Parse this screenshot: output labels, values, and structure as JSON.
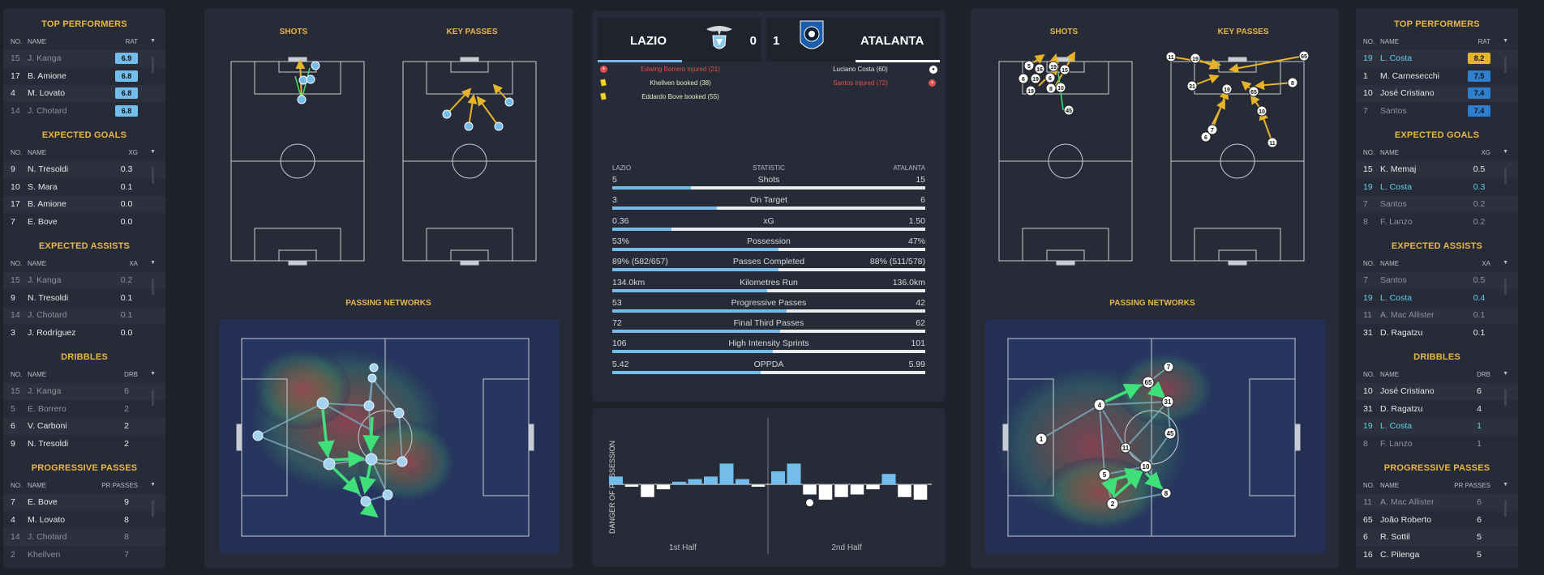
{
  "left_sidebar": {
    "sections": [
      {
        "title": "TOP PERFORMERS",
        "col_no": "NO.",
        "col_name": "NAME",
        "col_val": "RAT",
        "rows": [
          {
            "no": "15",
            "name": "J. Kanga",
            "val": "6.9",
            "style": "dim",
            "badge": "#74bce9"
          },
          {
            "no": "17",
            "name": "B. Amione",
            "val": "6.8",
            "style": "white",
            "badge": "#74bce9"
          },
          {
            "no": "4",
            "name": "M. Lovato",
            "val": "6.8",
            "style": "white",
            "badge": "#74bce9"
          },
          {
            "no": "14",
            "name": "J. Chotard",
            "val": "6.8",
            "style": "dim",
            "badge": "#74bce9"
          }
        ]
      },
      {
        "title": "EXPECTED GOALS",
        "col_no": "NO.",
        "col_name": "NAME",
        "col_val": "XG",
        "rows": [
          {
            "no": "9",
            "name": "N. Tresoldi",
            "val": "0.3",
            "style": "white"
          },
          {
            "no": "10",
            "name": "S. Mara",
            "val": "0.1",
            "style": "white"
          },
          {
            "no": "17",
            "name": "B. Amione",
            "val": "0.0",
            "style": "white"
          },
          {
            "no": "7",
            "name": "E. Bove",
            "val": "0.0",
            "style": "white"
          }
        ]
      },
      {
        "title": "EXPECTED ASSISTS",
        "col_no": "NO.",
        "col_name": "NAME",
        "col_val": "XA",
        "rows": [
          {
            "no": "15",
            "name": "J. Kanga",
            "val": "0.2",
            "style": "dim"
          },
          {
            "no": "9",
            "name": "N. Tresoldi",
            "val": "0.1",
            "style": "white"
          },
          {
            "no": "14",
            "name": "J. Chotard",
            "val": "0.1",
            "style": "dim"
          },
          {
            "no": "3",
            "name": "J. Rodríguez",
            "val": "0.0",
            "style": "white"
          }
        ]
      },
      {
        "title": "DRIBBLES",
        "col_no": "NO.",
        "col_name": "NAME",
        "col_val": "DRB",
        "rows": [
          {
            "no": "15",
            "name": "J. Kanga",
            "val": "6",
            "style": "dim"
          },
          {
            "no": "5",
            "name": "E. Borrero",
            "val": "2",
            "style": "dim"
          },
          {
            "no": "6",
            "name": "V. Carboni",
            "val": "2",
            "style": "white"
          },
          {
            "no": "9",
            "name": "N. Tresoldi",
            "val": "2",
            "style": "white"
          }
        ]
      },
      {
        "title": "PROGRESSIVE PASSES",
        "col_no": "NO.",
        "col_name": "NAME",
        "col_val": "PR PASSES",
        "rows": [
          {
            "no": "7",
            "name": "E. Bove",
            "val": "9",
            "style": "white"
          },
          {
            "no": "4",
            "name": "M. Lovato",
            "val": "8",
            "style": "white"
          },
          {
            "no": "14",
            "name": "J. Chotard",
            "val": "8",
            "style": "dim"
          },
          {
            "no": "2",
            "name": "Khellven",
            "val": "7",
            "style": "dim"
          }
        ]
      }
    ]
  },
  "right_sidebar": {
    "sections": [
      {
        "title": "TOP PERFORMERS",
        "col_no": "NO.",
        "col_name": "NAME",
        "col_val": "RAT",
        "rows": [
          {
            "no": "19",
            "name": "L. Costa",
            "val": "8.2",
            "style": "cyan",
            "badge": "#e6b429"
          },
          {
            "no": "1",
            "name": "M. Carnesecchi",
            "val": "7.5",
            "style": "white",
            "badge": "#2e7fd0"
          },
          {
            "no": "10",
            "name": "José Cristiano",
            "val": "7.4",
            "style": "white",
            "badge": "#2e7fd0"
          },
          {
            "no": "7",
            "name": "Santos",
            "val": "7.4",
            "style": "dim",
            "badge": "#2e7fd0"
          }
        ]
      },
      {
        "title": "EXPECTED GOALS",
        "col_no": "NO.",
        "col_name": "NAME",
        "col_val": "XG",
        "rows": [
          {
            "no": "15",
            "name": "K. Memaj",
            "val": "0.5",
            "style": "white"
          },
          {
            "no": "19",
            "name": "L. Costa",
            "val": "0.3",
            "style": "cyan"
          },
          {
            "no": "7",
            "name": "Santos",
            "val": "0.2",
            "style": "dim"
          },
          {
            "no": "8",
            "name": "F. Lanzo",
            "val": "0.2",
            "style": "dim"
          }
        ]
      },
      {
        "title": "EXPECTED ASSISTS",
        "col_no": "NO.",
        "col_name": "NAME",
        "col_val": "XA",
        "rows": [
          {
            "no": "7",
            "name": "Santos",
            "val": "0.5",
            "style": "dim"
          },
          {
            "no": "19",
            "name": "L. Costa",
            "val": "0.4",
            "style": "cyan"
          },
          {
            "no": "11",
            "name": "A. Mac Allister",
            "val": "0.1",
            "style": "dim"
          },
          {
            "no": "31",
            "name": "D. Ragatzu",
            "val": "0.1",
            "style": "white"
          }
        ]
      },
      {
        "title": "DRIBBLES",
        "col_no": "NO.",
        "col_name": "NAME",
        "col_val": "DRB",
        "rows": [
          {
            "no": "10",
            "name": "José Cristiano",
            "val": "6",
            "style": "white"
          },
          {
            "no": "31",
            "name": "D. Ragatzu",
            "val": "4",
            "style": "white"
          },
          {
            "no": "19",
            "name": "L. Costa",
            "val": "1",
            "style": "cyan"
          },
          {
            "no": "8",
            "name": "F. Lanzo",
            "val": "1",
            "style": "dim"
          }
        ]
      },
      {
        "title": "PROGRESSIVE PASSES",
        "col_no": "NO.",
        "col_name": "NAME",
        "col_val": "PR PASSES",
        "rows": [
          {
            "no": "11",
            "name": "A. Mac Allister",
            "val": "6",
            "style": "dim"
          },
          {
            "no": "65",
            "name": "João Roberto",
            "val": "6",
            "style": "white"
          },
          {
            "no": "6",
            "name": "R. Sottil",
            "val": "5",
            "style": "white"
          },
          {
            "no": "16",
            "name": "C. Pilenga",
            "val": "5",
            "style": "white"
          }
        ]
      }
    ]
  },
  "pitch_labels": {
    "shots": "SHOTS",
    "key_passes": "KEY PASSES",
    "passing_networks": "PASSING NETWORKS"
  },
  "match": {
    "home_team": "LAZIO",
    "away_team": "ATALANTA",
    "home_score": "0",
    "away_score": "1",
    "home_events": [
      {
        "text": "Edwing Borrero injured (21)",
        "type": "injury"
      },
      {
        "text": "Khellven booked (38)",
        "type": "booking"
      },
      {
        "text": "Eddardo Bove booked (55)",
        "type": "booking"
      }
    ],
    "away_events": [
      {
        "text": "Luciano Costa (60)",
        "type": "goal"
      },
      {
        "text": "Santos injured (72)",
        "type": "injury"
      }
    ]
  },
  "stats": {
    "header": {
      "home": "LAZIO",
      "mid": "STATISTIC",
      "away": "ATALANTA"
    },
    "rows": [
      {
        "label": "Shots",
        "home": "5",
        "away": "15",
        "home_share": 0.25
      },
      {
        "label": "On Target",
        "home": "3",
        "away": "6",
        "home_share": 0.333
      },
      {
        "label": "xG",
        "home": "0.36",
        "away": "1.50",
        "home_share": 0.19
      },
      {
        "label": "Possession",
        "home": "53%",
        "away": "47%",
        "home_share": 0.53
      },
      {
        "label": "Passes Completed",
        "home": "89% (582/657)",
        "away": "88% (511/578)",
        "home_share": 0.53
      },
      {
        "label": "Kilometres Run",
        "home": "134.0km",
        "away": "136.0km",
        "home_share": 0.496
      },
      {
        "label": "Progressive Passes",
        "home": "53",
        "away": "42",
        "home_share": 0.558
      },
      {
        "label": "Final Third Passes",
        "home": "72",
        "away": "62",
        "home_share": 0.537
      },
      {
        "label": "High Intensity Sprints",
        "home": "106",
        "away": "101",
        "home_share": 0.512
      },
      {
        "label": "OPPDA",
        "home": "5.42",
        "away": "5.99",
        "home_share": 0.475
      }
    ]
  },
  "danger": {
    "ylabel": "DANGER OF POSSESSION",
    "first_half": "1st Half",
    "second_half": "2nd Half",
    "first_half_values": [
      3,
      -1,
      -5,
      -2,
      1,
      2,
      3,
      8,
      2,
      -1
    ],
    "second_half_values": [
      5,
      8,
      -4,
      -6,
      -5,
      -4,
      -2,
      4,
      -5,
      -6
    ],
    "goal_marker_index": 2
  },
  "colors": {
    "home": "#74bce9",
    "away": "#ffffff",
    "accent": "#e8b64a",
    "injury": "#e05151",
    "booking": "#f2d21a"
  }
}
